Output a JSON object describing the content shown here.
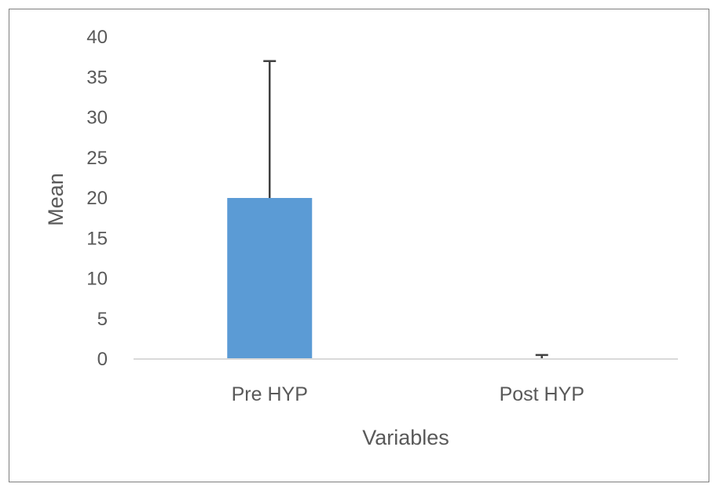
{
  "chart_data": {
    "type": "bar",
    "title": "",
    "xlabel": "Variables",
    "ylabel": "Mean",
    "categories": [
      "Pre HYP",
      "Post HYP"
    ],
    "values": [
      20,
      0
    ],
    "error_upper": [
      17,
      0.5
    ],
    "ylim": [
      0,
      40
    ],
    "yticks": [
      0,
      5,
      10,
      15,
      20,
      25,
      30,
      35,
      40
    ],
    "grid": false,
    "legend": "none",
    "bar_color": "#5b9bd5",
    "error_color": "#404040",
    "axis_color": "#d9d9d9"
  }
}
